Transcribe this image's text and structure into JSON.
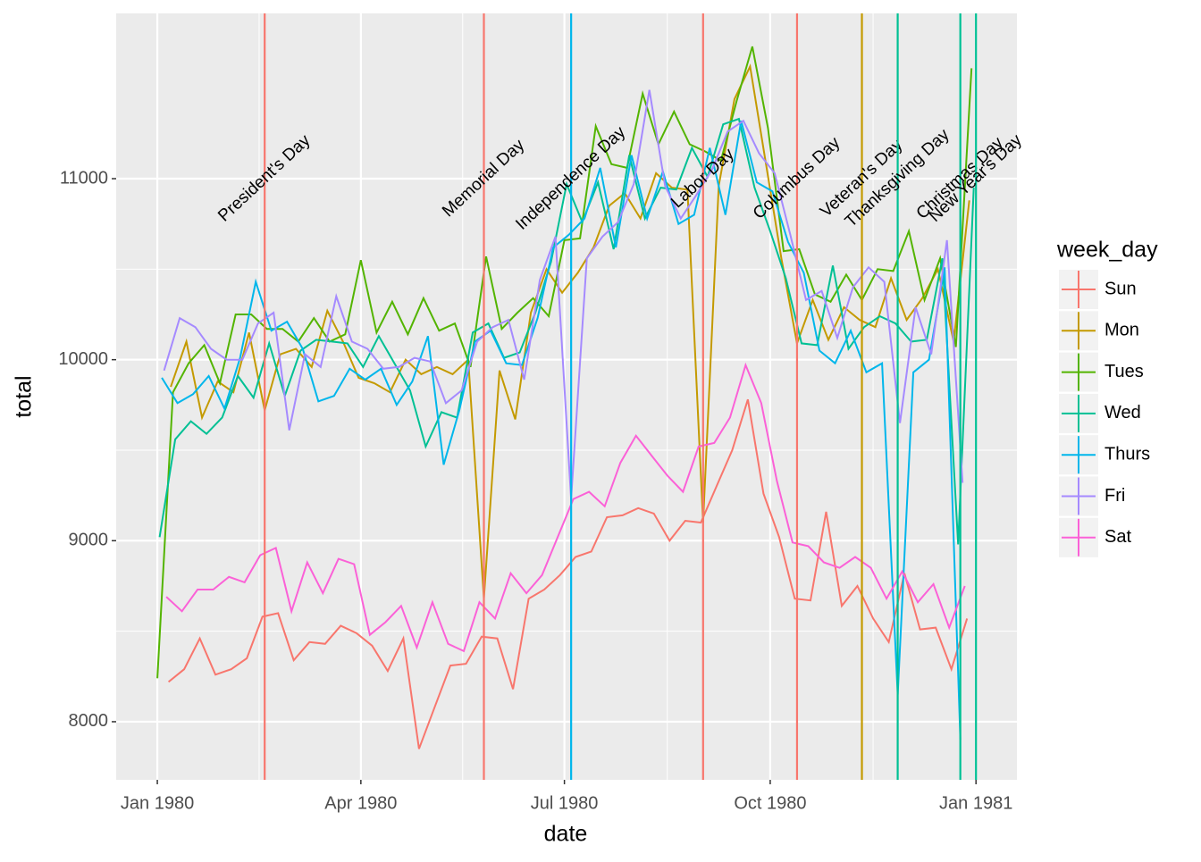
{
  "chart_data": {
    "type": "line",
    "x_label": "date",
    "y_label": "total",
    "legend_title": "week_day",
    "legend_position": "right",
    "grid": true,
    "xlim": [
      -18.4,
      384.3
    ],
    "xticks": [
      {
        "value": 0,
        "label": "Jan 1980"
      },
      {
        "value": 91,
        "label": "Apr 1980"
      },
      {
        "value": 182,
        "label": "Jul 1980"
      },
      {
        "value": 274,
        "label": "Oct 1980"
      },
      {
        "value": 366,
        "label": "Jan 1981"
      }
    ],
    "ylim": [
      7679,
      11913
    ],
    "yticks": [
      8000,
      9000,
      10000,
      11000
    ],
    "series": [
      {
        "name": "Sun",
        "color": "#F8766D",
        "x": [
          5,
          12,
          19,
          26,
          33,
          40,
          47,
          54,
          61,
          68,
          75,
          82,
          89,
          96,
          103,
          110,
          117,
          124,
          131,
          138,
          145,
          152,
          159,
          166,
          173,
          180,
          187,
          194,
          201,
          208,
          215,
          222,
          229,
          236,
          243,
          250,
          257,
          264,
          271,
          278,
          285,
          292,
          299,
          306,
          313,
          320,
          327,
          334,
          341,
          348,
          355,
          362
        ],
        "values": [
          8220,
          8290,
          8460,
          8260,
          8290,
          8350,
          8580,
          8600,
          8340,
          8440,
          8430,
          8530,
          8490,
          8420,
          8280,
          8460,
          7850,
          8080,
          8310,
          8320,
          8470,
          8460,
          8180,
          8680,
          8730,
          8810,
          8910,
          8940,
          9130,
          9140,
          9180,
          9150,
          9000,
          9110,
          9100,
          9300,
          9500,
          9780,
          9260,
          9020,
          8680,
          8670,
          9160,
          8640,
          8750,
          8570,
          8440,
          8820,
          8510,
          8520,
          8290,
          8570
        ]
      },
      {
        "name": "Mon",
        "color": "#C49A00",
        "x": [
          6,
          13,
          20,
          27,
          34,
          41,
          48,
          55,
          62,
          69,
          76,
          83,
          90,
          97,
          104,
          111,
          118,
          125,
          132,
          139,
          146,
          153,
          160,
          167,
          174,
          181,
          188,
          195,
          202,
          209,
          216,
          223,
          230,
          237,
          244,
          251,
          258,
          265,
          272,
          279,
          286,
          293,
          300,
          307,
          314,
          321,
          328,
          335,
          342,
          349,
          356,
          363
        ],
        "values": [
          9850,
          10100,
          9680,
          9880,
          9820,
          10150,
          9720,
          10030,
          10060,
          9960,
          10270,
          10100,
          9900,
          9870,
          9820,
          10000,
          9920,
          9960,
          9920,
          10000,
          8680,
          9940,
          9670,
          10260,
          10500,
          10370,
          10480,
          10620,
          10850,
          10920,
          10780,
          11030,
          10950,
          10940,
          9100,
          10960,
          11440,
          11620,
          11090,
          10560,
          10090,
          10330,
          10110,
          10290,
          10220,
          10180,
          10450,
          10220,
          10340,
          10500,
          10100,
          10880
        ]
      },
      {
        "name": "Tues",
        "color": "#53B400",
        "x": [
          0,
          7,
          14,
          21,
          28,
          35,
          42,
          49,
          56,
          63,
          70,
          77,
          84,
          91,
          98,
          105,
          112,
          119,
          126,
          133,
          140,
          147,
          154,
          161,
          168,
          175,
          182,
          189,
          196,
          203,
          210,
          217,
          224,
          231,
          238,
          245,
          252,
          259,
          266,
          273,
          280,
          287,
          294,
          301,
          308,
          315,
          322,
          329,
          336,
          343,
          350,
          357,
          364
        ],
        "values": [
          8240,
          9820,
          9980,
          10080,
          9870,
          10250,
          10250,
          10170,
          10170,
          10100,
          10230,
          10100,
          10140,
          10550,
          10150,
          10320,
          10140,
          10340,
          10160,
          10200,
          9960,
          10570,
          10170,
          10260,
          10340,
          10240,
          10660,
          10670,
          11290,
          11080,
          11060,
          11470,
          11190,
          11370,
          11190,
          11150,
          11100,
          11430,
          11730,
          11280,
          10600,
          10610,
          10360,
          10320,
          10470,
          10330,
          10500,
          10490,
          10710,
          10330,
          10560,
          10070,
          11610
        ]
      },
      {
        "name": "Wed",
        "color": "#00C094",
        "x": [
          1,
          8,
          15,
          22,
          29,
          36,
          43,
          50,
          57,
          64,
          71,
          78,
          85,
          92,
          99,
          106,
          113,
          120,
          127,
          134,
          141,
          148,
          155,
          162,
          169,
          176,
          183,
          190,
          197,
          204,
          211,
          218,
          225,
          232,
          239,
          246,
          253,
          260,
          267,
          274,
          281,
          288,
          295,
          302,
          309,
          316,
          323,
          330,
          337,
          344,
          351,
          358,
          365
        ],
        "values": [
          9020,
          9560,
          9660,
          9590,
          9680,
          9910,
          9790,
          10090,
          9800,
          10050,
          10110,
          10100,
          10090,
          9960,
          10130,
          9980,
          9830,
          9520,
          9710,
          9680,
          10150,
          10200,
          10010,
          10040,
          10260,
          10540,
          10970,
          10760,
          10980,
          10610,
          11130,
          10780,
          10950,
          10940,
          11170,
          11010,
          11300,
          11330,
          10950,
          10710,
          10450,
          10090,
          10080,
          10520,
          10060,
          10180,
          10240,
          10200,
          10100,
          10110,
          10560,
          8980,
          10950
        ]
      },
      {
        "name": "Thurs",
        "color": "#00B6EB",
        "x": [
          2,
          9,
          16,
          23,
          30,
          37,
          44,
          51,
          58,
          65,
          72,
          79,
          86,
          93,
          100,
          107,
          114,
          121,
          128,
          135,
          142,
          149,
          156,
          163,
          170,
          177,
          184,
          191,
          198,
          205,
          212,
          219,
          226,
          233,
          240,
          247,
          254,
          261,
          268,
          275,
          282,
          289,
          296,
          303,
          310,
          317,
          324,
          331,
          338,
          345,
          352,
          359
        ],
        "values": [
          9900,
          9760,
          9810,
          9910,
          9730,
          10010,
          10430,
          10160,
          10210,
          10060,
          9770,
          9800,
          9950,
          9890,
          9950,
          9750,
          9880,
          10130,
          9420,
          9720,
          10100,
          10160,
          9980,
          9970,
          10230,
          10620,
          10690,
          10780,
          11060,
          10620,
          11130,
          10780,
          11040,
          10750,
          10800,
          11170,
          10800,
          11320,
          10980,
          10930,
          10650,
          10480,
          10050,
          9980,
          10160,
          9930,
          9980,
          8150,
          9930,
          10000,
          10510,
          7900
        ]
      },
      {
        "name": "Fri",
        "color": "#A58AFF",
        "x": [
          3,
          10,
          17,
          24,
          31,
          38,
          45,
          52,
          59,
          66,
          73,
          80,
          87,
          94,
          101,
          108,
          115,
          122,
          129,
          136,
          143,
          150,
          157,
          164,
          171,
          178,
          185,
          192,
          199,
          206,
          213,
          220,
          227,
          234,
          241,
          248,
          255,
          262,
          269,
          276,
          283,
          290,
          297,
          304,
          311,
          318,
          325,
          332,
          339,
          346,
          353,
          360
        ],
        "values": [
          9940,
          10230,
          10180,
          10060,
          10000,
          10000,
          10200,
          10260,
          9610,
          10030,
          9960,
          10350,
          10100,
          10060,
          9950,
          9960,
          10010,
          9990,
          9760,
          9830,
          10100,
          10180,
          10220,
          9890,
          10440,
          10680,
          9230,
          10560,
          10680,
          10760,
          10970,
          11490,
          10960,
          10780,
          10910,
          11050,
          11260,
          11320,
          11140,
          11030,
          10690,
          10330,
          10380,
          10120,
          10400,
          10510,
          10430,
          9650,
          10290,
          10030,
          10660,
          9320
        ]
      },
      {
        "name": "Sat",
        "color": "#FB61D7",
        "x": [
          4,
          11,
          18,
          25,
          32,
          39,
          46,
          53,
          60,
          67,
          74,
          81,
          88,
          95,
          102,
          109,
          116,
          123,
          130,
          137,
          144,
          151,
          158,
          165,
          172,
          179,
          186,
          193,
          200,
          207,
          214,
          221,
          228,
          235,
          242,
          249,
          256,
          263,
          270,
          277,
          284,
          291,
          298,
          305,
          312,
          319,
          326,
          333,
          340,
          347,
          354,
          361
        ],
        "values": [
          8690,
          8610,
          8730,
          8730,
          8800,
          8770,
          8920,
          8960,
          8610,
          8880,
          8710,
          8900,
          8870,
          8480,
          8550,
          8640,
          8410,
          8660,
          8430,
          8390,
          8660,
          8570,
          8820,
          8710,
          8810,
          9020,
          9230,
          9270,
          9190,
          9430,
          9580,
          9470,
          9360,
          9270,
          9520,
          9540,
          9680,
          9970,
          9760,
          9330,
          8990,
          8970,
          8880,
          8850,
          8910,
          8850,
          8680,
          8830,
          8660,
          8760,
          8520,
          8750
        ]
      }
    ],
    "holidays": [
      {
        "name": "President's Day",
        "x": 48,
        "color": "#F8766D"
      },
      {
        "name": "Memorial Day",
        "x": 146,
        "color": "#F8766D"
      },
      {
        "name": "Independence Day",
        "x": 185,
        "color": "#00B6EB"
      },
      {
        "name": "Labor Day",
        "x": 244,
        "color": "#F8766D"
      },
      {
        "name": "Columbus Day",
        "x": 286,
        "color": "#F8766D"
      },
      {
        "name": "Veteran's Day",
        "x": 315,
        "color": "#C49A00"
      },
      {
        "name": "Thanksgiving Day",
        "x": 331,
        "color": "#00C094"
      },
      {
        "name": "Christmas Day",
        "x": 359,
        "color": "#00C094"
      },
      {
        "name": "New Year's Day",
        "x": 366,
        "color": "#00C094"
      }
    ]
  }
}
